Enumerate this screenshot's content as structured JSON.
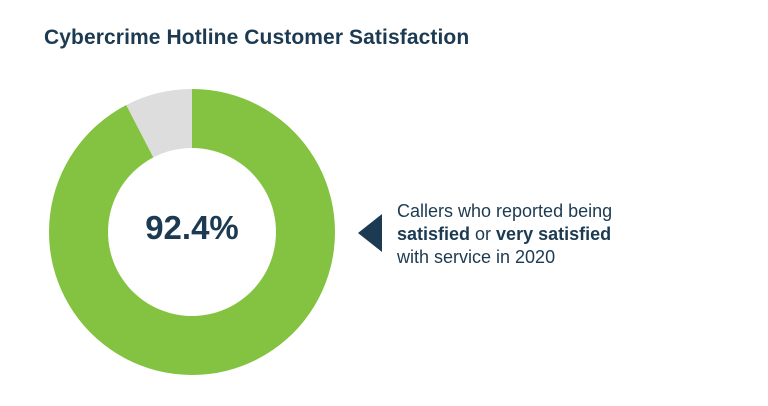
{
  "title": "Cybercrime Hotline Customer Satisfaction",
  "center_value": "92.4%",
  "caption": {
    "line1": "Callers who reported being",
    "strong1": "satisfied",
    "connector": " or ",
    "strong2": "very satisfied",
    "line3": "with service in 2020"
  },
  "colors": {
    "satisfied": "#84c341",
    "other": "#dddddd",
    "text": "#1c3a52"
  },
  "chart_data": {
    "type": "pie",
    "title": "Cybercrime Hotline Customer Satisfaction",
    "categories": [
      "satisfied or very satisfied",
      ""
    ],
    "values": [
      92.4,
      7.6
    ],
    "colors": [
      "#84c341",
      "#dddddd"
    ],
    "center_label": "92.4%"
  }
}
